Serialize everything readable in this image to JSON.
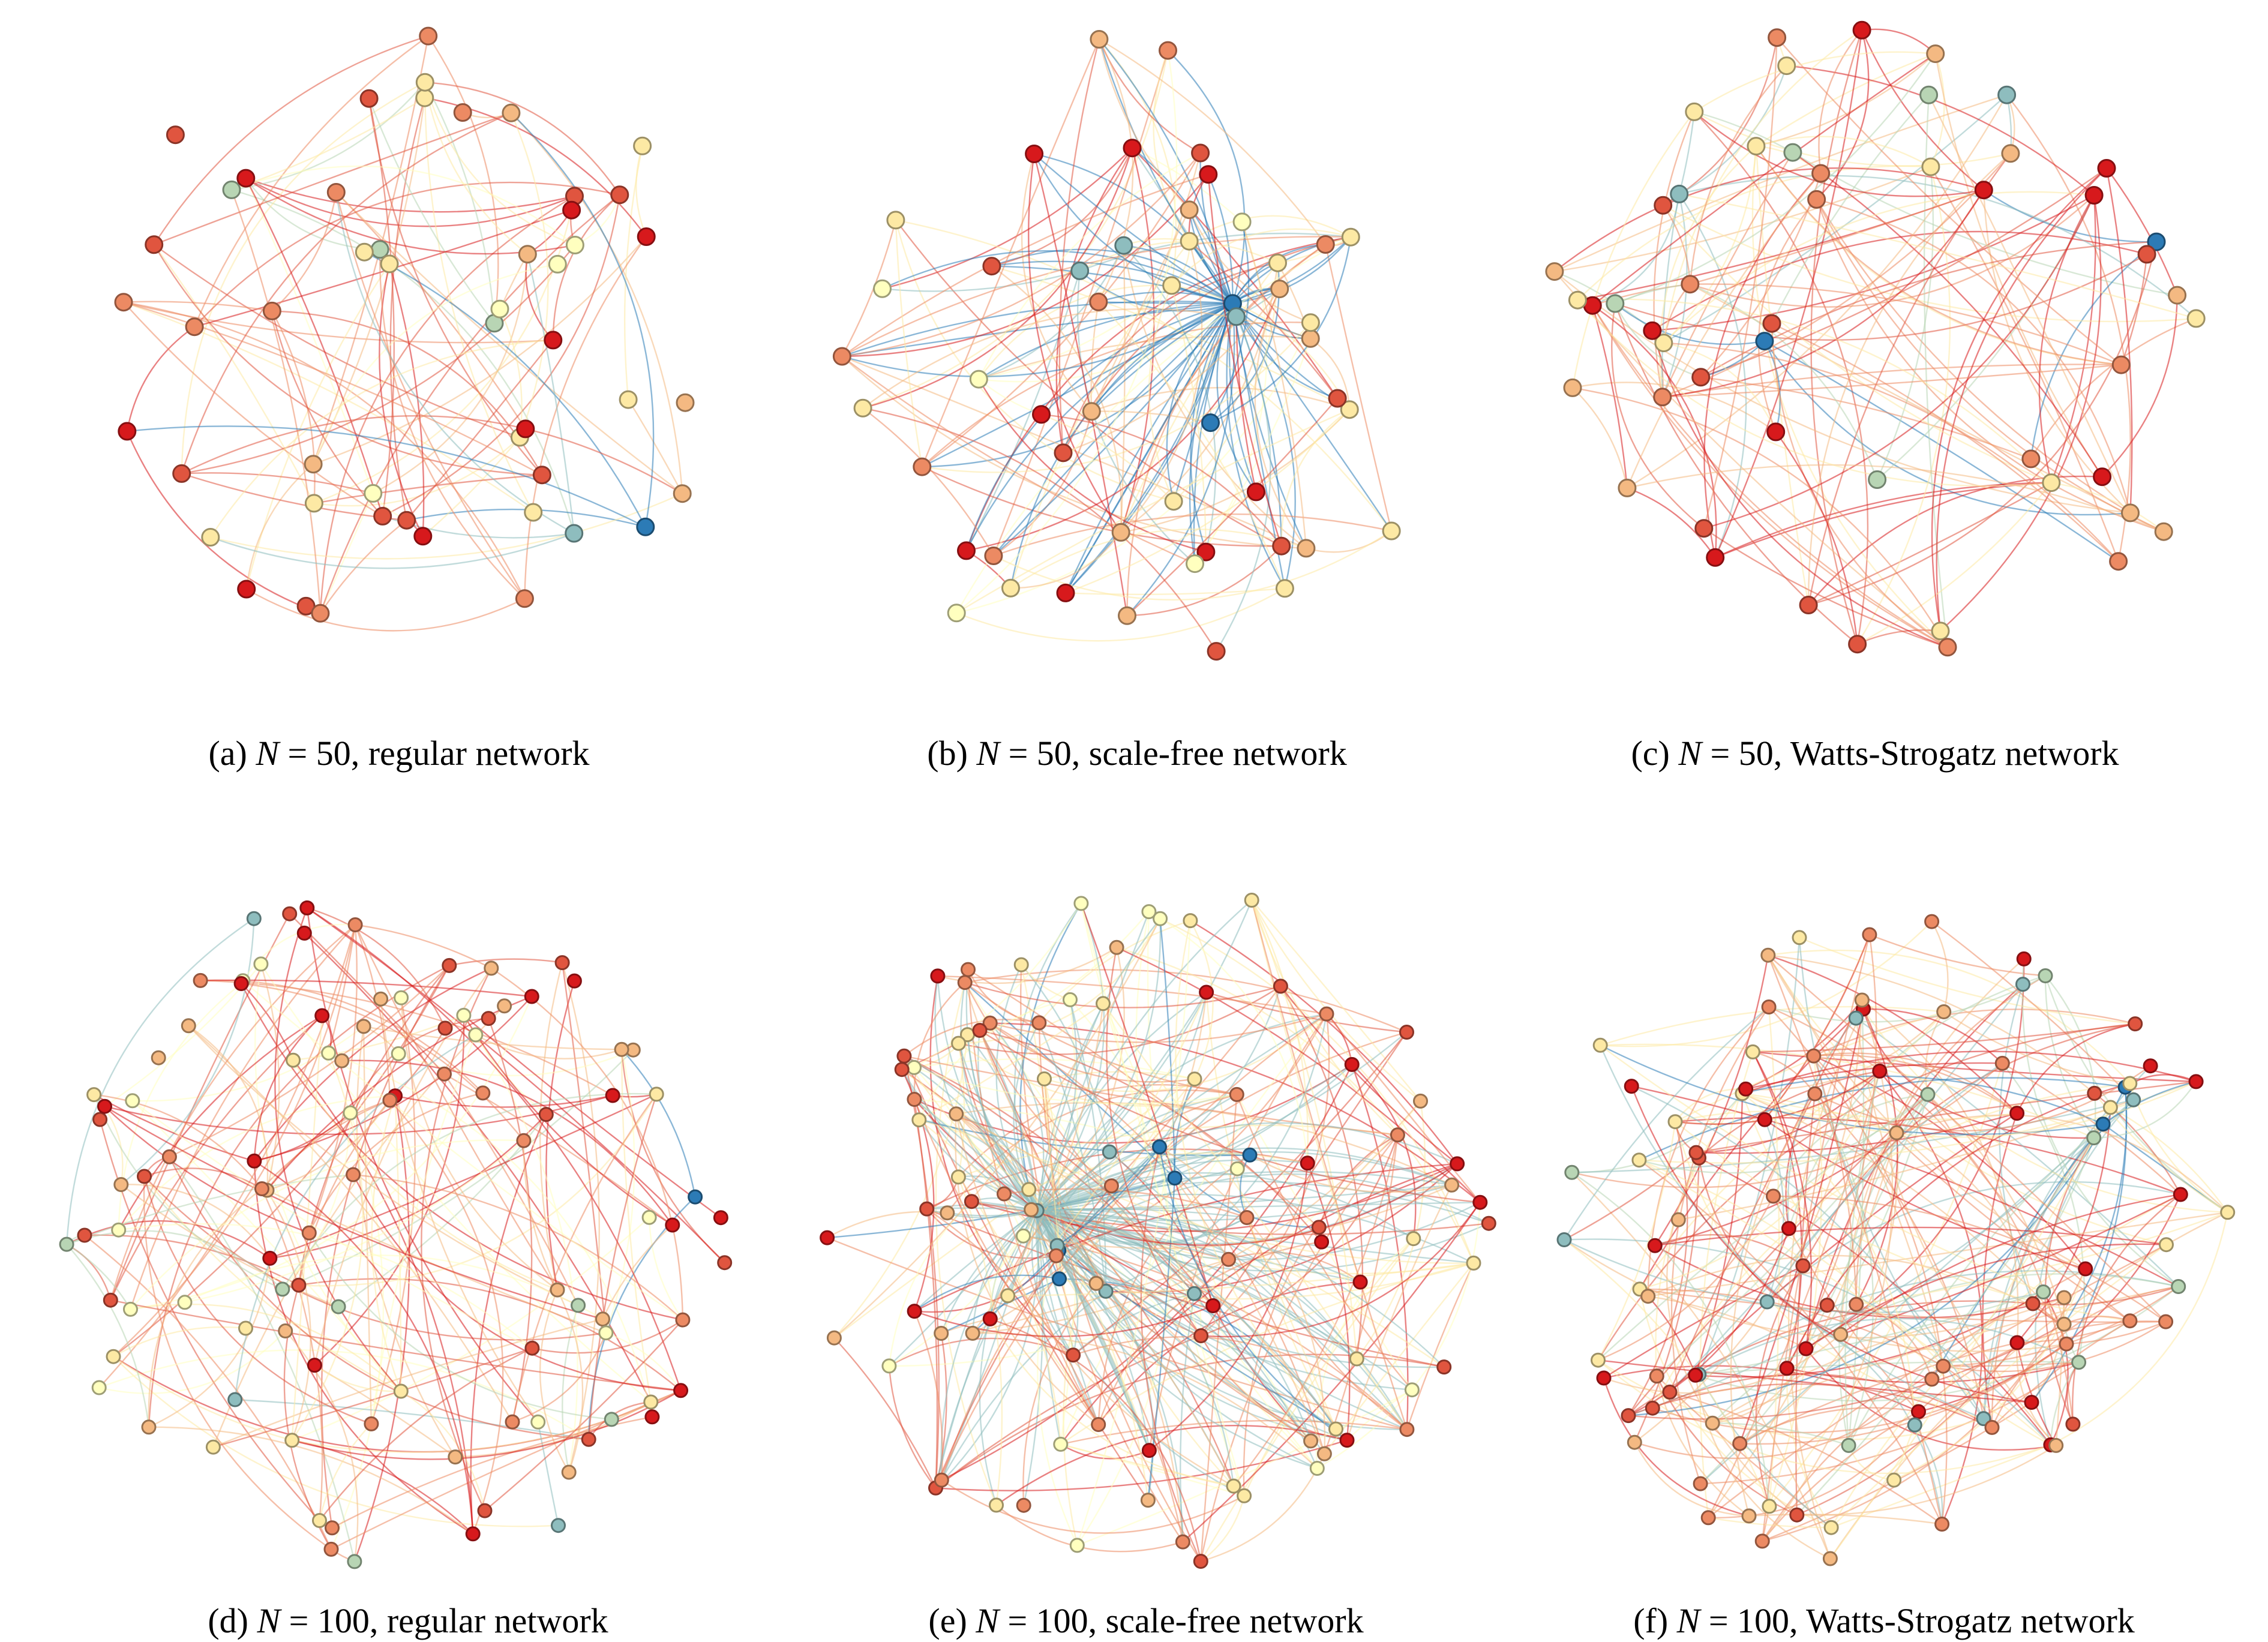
{
  "palette": [
    "#d7191c",
    "#e0553f",
    "#ec8a63",
    "#f4b982",
    "#fde9a4",
    "#ffffbf",
    "#e1efc0",
    "#b8d5b4",
    "#8ebdbe",
    "#2c7bb6"
  ],
  "panels": [
    {
      "label": "(a)",
      "var": "N",
      "rest": " = 50, regular network",
      "nodes": 50,
      "type": "regular"
    },
    {
      "label": "(b)",
      "var": "N",
      "rest": " = 50, scale-free network",
      "nodes": 50,
      "type": "scale-free"
    },
    {
      "label": "(c)",
      "var": "N",
      "rest": " = 50, Watts-Strogatz network",
      "nodes": 50,
      "type": "watts-strogatz"
    },
    {
      "label": "(d)",
      "var": "N",
      "rest": " = 100, regular network",
      "nodes": 100,
      "type": "regular"
    },
    {
      "label": "(e)",
      "var": "N",
      "rest": " = 100, scale-free network",
      "nodes": 100,
      "type": "scale-free"
    },
    {
      "label": "(f)",
      "var": "N",
      "rest": " = 100, Watts-Strogatz network",
      "nodes": 100,
      "type": "watts-strogatz"
    }
  ]
}
